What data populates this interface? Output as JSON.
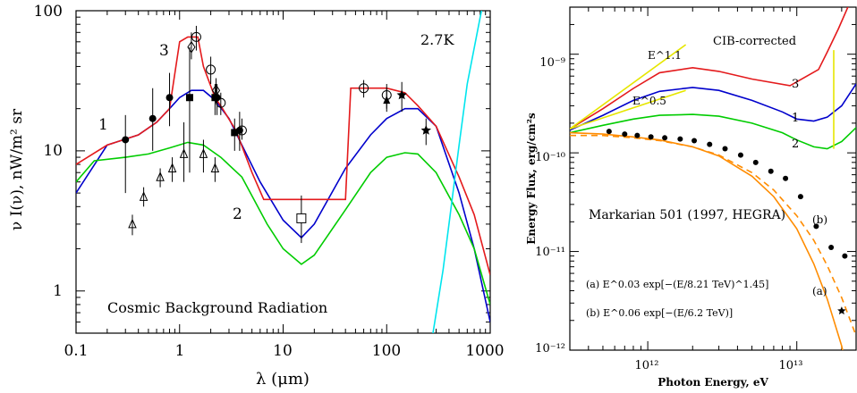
{
  "colors": {
    "red": "#e41a1c",
    "blue": "#0000cc",
    "green": "#00cc00",
    "cyan": "#00e5ee",
    "orange": "#ff8c00",
    "yellow": "#e6e600",
    "black": "#000000"
  },
  "chart_data": [
    {
      "type": "line",
      "title": "",
      "xlabel": "λ (μm)",
      "ylabel": "ν I(ν), nW/m² sr",
      "xscale": "log",
      "yscale": "log",
      "xlim": [
        0.1,
        1000
      ],
      "ylim": [
        0.5,
        100
      ],
      "xtick_labels": [
        "0.1",
        "1",
        "10",
        "100",
        "1000"
      ],
      "ytick_labels": [
        "1",
        "10",
        "100"
      ],
      "annotations": {
        "caption": "Cosmic Background Radiation",
        "temperature": "2.7K",
        "label_1": "1",
        "label_2": "2",
        "label_3": "3"
      },
      "series": [
        {
          "name": "1",
          "color": "blue",
          "x": [
            0.1,
            0.2,
            0.4,
            0.6,
            0.8,
            1.0,
            1.3,
            1.7,
            2.2,
            3,
            4,
            6,
            10,
            15,
            20,
            40,
            70,
            100,
            150,
            200,
            300,
            500,
            700,
            1000
          ],
          "y": [
            5,
            11,
            13,
            16,
            20,
            24,
            27,
            27,
            23,
            17,
            11,
            6,
            3.2,
            2.4,
            3,
            7.5,
            13,
            17,
            20,
            20,
            15,
            5,
            2,
            0.6
          ]
        },
        {
          "name": "2",
          "color": "green",
          "x": [
            0.1,
            0.15,
            0.3,
            0.5,
            0.8,
            1.2,
            1.7,
            2.5,
            4,
            7,
            10,
            15,
            20,
            40,
            70,
            100,
            150,
            200,
            300,
            500,
            700,
            1000
          ],
          "y": [
            6,
            8.5,
            9,
            9.5,
            10.5,
            11.5,
            11,
            9,
            6.5,
            3,
            2,
            1.55,
            1.8,
            3.8,
            7,
            9,
            9.7,
            9.5,
            7,
            3.5,
            2,
            0.8
          ]
        },
        {
          "name": "3",
          "color": "red",
          "x": [
            0.1,
            0.2,
            0.4,
            0.6,
            0.8,
            1.0,
            1.2,
            1.5,
            1.7,
            2.2,
            2.6,
            3.5,
            5,
            6.5,
            10,
            20,
            40,
            45,
            60,
            100,
            150,
            200,
            300,
            500,
            700,
            1000
          ],
          "y": [
            8,
            11,
            13,
            16,
            20,
            60,
            65,
            65,
            40,
            24,
            20,
            14,
            7,
            4.5,
            4.5,
            4.5,
            4.5,
            28,
            28,
            28,
            26,
            21,
            15,
            6.5,
            3.5,
            1.3
          ]
        },
        {
          "name": "2.7K",
          "color": "cyan",
          "x": [
            280,
            350,
            400,
            450,
            500,
            600,
            800,
            1000
          ],
          "y": [
            0.5,
            1.4,
            3,
            6,
            11,
            30,
            90,
            200
          ]
        }
      ],
      "markers": {
        "filled_circle": [
          [
            0.3,
            12,
            5,
            18
          ],
          [
            0.55,
            17,
            10,
            28
          ],
          [
            0.8,
            24,
            15,
            36
          ],
          [
            2.3,
            24,
            18,
            30
          ],
          [
            3.8,
            14,
            10,
            19
          ]
        ],
        "filled_square": [
          [
            1.25,
            24,
            7,
            55
          ],
          [
            2.2,
            24,
            18,
            30
          ],
          [
            3.4,
            13.5,
            10,
            17
          ]
        ],
        "open_circle": [
          [
            1.45,
            65,
            52,
            78
          ],
          [
            2.0,
            38,
            30,
            47
          ],
          [
            2.5,
            22,
            18,
            26
          ],
          [
            4.0,
            14,
            12,
            17
          ],
          [
            60,
            28,
            24,
            32
          ],
          [
            100,
            25,
            20,
            30
          ]
        ],
        "open_diamond": [
          [
            1.3,
            55,
            45,
            70
          ],
          [
            2.25,
            27,
            22,
            33
          ]
        ],
        "open_triangle": [
          [
            0.35,
            3,
            2.5,
            3.5
          ],
          [
            0.45,
            4.7,
            4,
            5.5
          ],
          [
            0.65,
            6.5,
            5.5,
            7.5
          ],
          [
            0.85,
            7.5,
            6,
            9
          ],
          [
            1.1,
            9.5,
            6,
            16
          ],
          [
            1.7,
            9.5,
            7,
            12
          ],
          [
            2.2,
            7.5,
            6,
            9
          ]
        ],
        "open_square": [
          [
            15,
            3.3,
            2.2,
            4.8
          ]
        ],
        "filled_star": [
          [
            140,
            25,
            19,
            31
          ],
          [
            240,
            14,
            11,
            17
          ]
        ],
        "filled_triangle": [
          [
            100,
            23,
            19,
            28
          ]
        ]
      }
    },
    {
      "type": "line",
      "title": "",
      "xlabel": "Photon Energy, eV",
      "ylabel": "Energy Flux, erg/cm²s",
      "xscale": "log",
      "yscale": "log",
      "xlim": [
        300000000000.0,
        25000000000000.0
      ],
      "ylim": [
        1e-12,
        3e-09
      ],
      "xtick_labels": [
        "10¹²",
        "10¹³"
      ],
      "ytick_labels": [
        "10⁻⁹",
        "10⁻¹⁰",
        "10⁻¹¹",
        "10⁻¹²"
      ],
      "annotations": {
        "cib": "CIB-corrected",
        "power_11": "E^1.1",
        "power_05": "E^0.5",
        "source": "Markarian 501 (1997, HEGRA)",
        "fit_a": "(a)  E^0.03 exp[−(E/8.21 TeV)^1.45]",
        "fit_b": "(b)  E^0.06 exp[−(E/6.2 TeV)]",
        "tag_a": "(a)",
        "tag_b": "(b)",
        "label_1": "1",
        "label_2": "2",
        "label_3": "3"
      },
      "series": [
        {
          "name": "3",
          "color": "red",
          "x": [
            300000000000.0,
            500000000000.0,
            800000000000.0,
            1200000000000.0,
            2000000000000.0,
            3000000000000.0,
            5000000000000.0,
            9000000000000.0,
            14000000000000.0,
            16000000000000.0,
            19000000000000.0,
            22000000000000.0,
            24000000000000.0
          ],
          "y": [
            1.75e-10,
            2.8e-10,
            4.5e-10,
            6.5e-10,
            7.3e-10,
            6.7e-10,
            5.6e-10,
            4.8e-10,
            7e-10,
            1.05e-09,
            1.8e-09,
            3e-09,
            5e-09
          ]
        },
        {
          "name": "1",
          "color": "blue",
          "x": [
            300000000000.0,
            500000000000.0,
            800000000000.0,
            1200000000000.0,
            2000000000000.0,
            3000000000000.0,
            5000000000000.0,
            8000000000000.0,
            10000000000000.0,
            13000000000000.0,
            16000000000000.0,
            20000000000000.0,
            25000000000000.0
          ],
          "y": [
            1.7e-10,
            2.4e-10,
            3.4e-10,
            4.2e-10,
            4.6e-10,
            4.3e-10,
            3.4e-10,
            2.6e-10,
            2.2e-10,
            2.1e-10,
            2.3e-10,
            3e-10,
            5e-10
          ]
        },
        {
          "name": "2",
          "color": "green",
          "x": [
            300000000000.0,
            500000000000.0,
            800000000000.0,
            1200000000000.0,
            2000000000000.0,
            3000000000000.0,
            5000000000000.0,
            8000000000000.0,
            10000000000000.0,
            13000000000000.0,
            16000000000000.0,
            20000000000000.0,
            25000000000000.0
          ],
          "y": [
            1.6e-10,
            1.9e-10,
            2.2e-10,
            2.4e-10,
            2.45e-10,
            2.35e-10,
            2e-10,
            1.6e-10,
            1.35e-10,
            1.15e-10,
            1.1e-10,
            1.3e-10,
            1.8e-10
          ]
        },
        {
          "name": "E^1.1",
          "color": "yellow",
          "x": [
            300000000000.0,
            1800000000000.0
          ],
          "y": [
            1.75e-10,
            1.25e-09
          ]
        },
        {
          "name": "E^0.5",
          "color": "yellow",
          "x": [
            300000000000.0,
            1800000000000.0
          ],
          "y": [
            1.75e-10,
            4.3e-10
          ]
        },
        {
          "name": "(a)",
          "color": "orange",
          "x": [
            300000000000.0,
            500000000000.0,
            800000000000.0,
            1200000000000.0,
            2000000000000.0,
            3000000000000.0,
            5000000000000.0,
            7000000000000.0,
            10000000000000.0,
            13000000000000.0,
            16000000000000.0,
            20000000000000.0,
            25000000000000.0
          ],
          "y": [
            1.6e-10,
            1.55e-10,
            1.45e-10,
            1.35e-10,
            1.15e-10,
            9.3e-11,
            5.8e-11,
            3.6e-11,
            1.7e-11,
            7.5e-12,
            3.3e-12,
            1.1e-12,
            2.5e-13
          ]
        },
        {
          "name": "(b)",
          "color": "orange",
          "dashed": true,
          "x": [
            300000000000.0,
            500000000000.0,
            800000000000.0,
            1200000000000.0,
            2000000000000.0,
            3000000000000.0,
            5000000000000.0,
            7000000000000.0,
            10000000000000.0,
            13000000000000.0,
            16000000000000.0,
            20000000000000.0,
            25000000000000.0
          ],
          "y": [
            1.5e-10,
            1.5e-10,
            1.42e-10,
            1.33e-10,
            1.15e-10,
            9.5e-11,
            6.3e-11,
            4.2e-11,
            2.3e-11,
            1.3e-11,
            7.2e-12,
            3.4e-12,
            1.4e-12
          ]
        },
        {
          "name": "CIB-corrected cutoff",
          "color": "yellow",
          "x": [
            17700000000000.0,
            17700000000000.0
          ],
          "y": [
            1.1e-10,
            1.1e-09
          ]
        }
      ],
      "markers": {
        "filled_circle": [
          [
            550000000000.0,
            1.65e-10
          ],
          [
            700000000000.0,
            1.55e-10
          ],
          [
            850000000000.0,
            1.5e-10
          ],
          [
            1050000000000.0,
            1.45e-10
          ],
          [
            1300000000000.0,
            1.42e-10
          ],
          [
            1650000000000.0,
            1.38e-10
          ],
          [
            2050000000000.0,
            1.33e-10
          ],
          [
            2600000000000.0,
            1.22e-10
          ],
          [
            3300000000000.0,
            1.1e-10
          ],
          [
            4200000000000.0,
            9.5e-11
          ],
          [
            5300000000000.0,
            8e-11
          ],
          [
            6700000000000.0,
            6.5e-11
          ],
          [
            8400000000000.0,
            5.5e-11
          ],
          [
            10600000000000.0,
            3.6e-11
          ],
          [
            13500000000000.0,
            1.8e-11
          ],
          [
            17000000000000.0,
            1.1e-11
          ],
          [
            21000000000000.0,
            9e-12
          ]
        ],
        "filled_star": [
          [
            20000000000000.0,
            2.5e-12
          ]
        ]
      }
    }
  ]
}
